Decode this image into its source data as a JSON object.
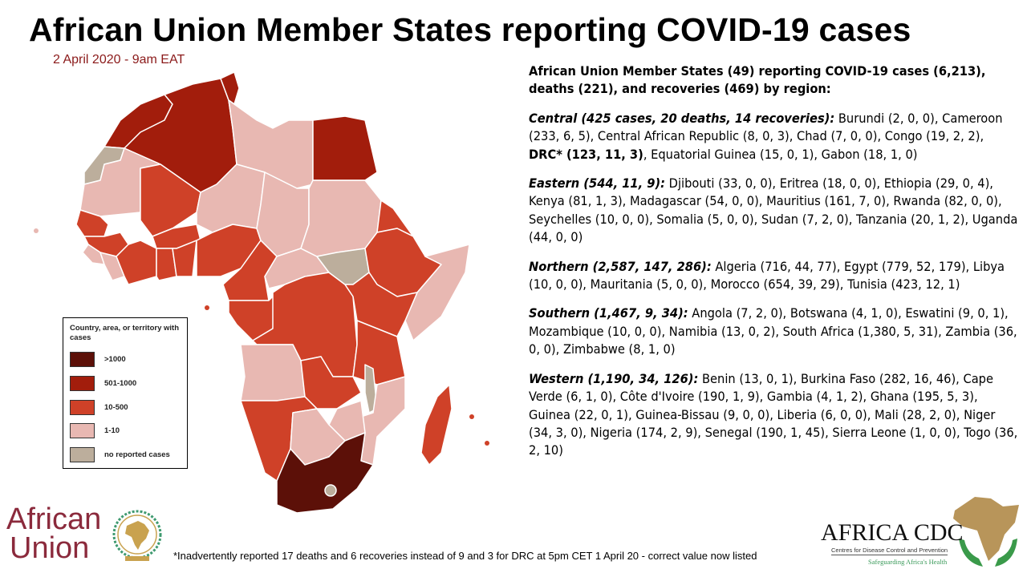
{
  "title": "African Union Member States reporting COVID-19 cases",
  "date": "2 April 2020 - 9am EAT",
  "summary": "African Union Member States (49) reporting COVID-19 cases (6,213), deaths (221), and recoveries (469) by region:",
  "regions": [
    {
      "label": "Central (425 cases, 20 deaths, 14 recoveries):",
      "text_before": "  Burundi (2, 0, 0), Cameroon (233, 6, 5), Central African Republic (8, 0, 3), Chad (7, 0, 0), Congo (19, 2, 2), ",
      "bold": "DRC* (123, 11, 3)",
      "text_after": ", Equatorial Guinea (15, 0, 1), Gabon (18, 1, 0)"
    },
    {
      "label": "Eastern (544, 11, 9):",
      "text_before": " Djibouti (33, 0, 0), Eritrea (18, 0, 0), Ethiopia (29, 0, 4), Kenya (81, 1, 3), Madagascar (54, 0, 0), Mauritius (161, 7, 0), Rwanda (82, 0, 0), Seychelles (10, 0, 0), Somalia (5, 0, 0), Sudan (7, 2, 0), Tanzania (20, 1, 2), Uganda (44, 0, 0)"
    },
    {
      "label": "Northern (2,587, 147, 286):",
      "text_before": " Algeria (716, 44, 77), Egypt (779, 52, 179), Libya (10, 0, 0), Mauritania (5, 0, 0), Morocco (654, 39, 29), Tunisia (423, 12, 1)"
    },
    {
      "label": "Southern (1,467, 9, 34):",
      "text_before": " Angola (7, 2, 0), Botswana (4, 1, 0), Eswatini (9, 0, 1), Mozambique (10, 0, 0),  Namibia (13, 0, 2), South Africa (1,380, 5, 31), Zambia (36, 0, 0), Zimbabwe (8, 1, 0)"
    },
    {
      "label": "Western (1,190, 34, 126):",
      "text_before": " Benin (13, 0, 1), Burkina Faso (282, 16, 46), Cape Verde (6, 1, 0), Côte d'Ivoire (190, 1, 9), Gambia (4, 1, 2), Ghana (195, 5, 3), Guinea (22, 0, 1), Guinea-Bissau (9, 0, 0), Liberia (6, 0, 0), Mali (28, 2, 0), Niger (34, 3, 0), Nigeria (174, 2, 9), Senegal (190, 1, 45), Sierra Leone (1, 0, 0), Togo (36, 2, 10)"
    }
  ],
  "legend": {
    "title": "Country, area, or territory with cases",
    "items": [
      {
        "label": ">1000",
        "color": "#5c1008"
      },
      {
        "label": "501-1000",
        "color": "#a21d0c"
      },
      {
        "label": "10-500",
        "color": "#cf4128"
      },
      {
        "label": "1-10",
        "color": "#e8b8b2"
      },
      {
        "label": "no reported cases",
        "color": "#bcae9c"
      }
    ]
  },
  "footnote": "*Inadvertently reported 17 deaths and 6 recoveries instead of 9 and 3 for DRC at 5pm CET 1 April 20 - correct value now listed",
  "logos": {
    "au_line1": "African",
    "au_line2": "Union",
    "cdc_name": "AFRICA CDC",
    "cdc_sub": "Centres for Disease Control and Prevention",
    "cdc_tagline": "Safeguarding Africa's Health"
  }
}
